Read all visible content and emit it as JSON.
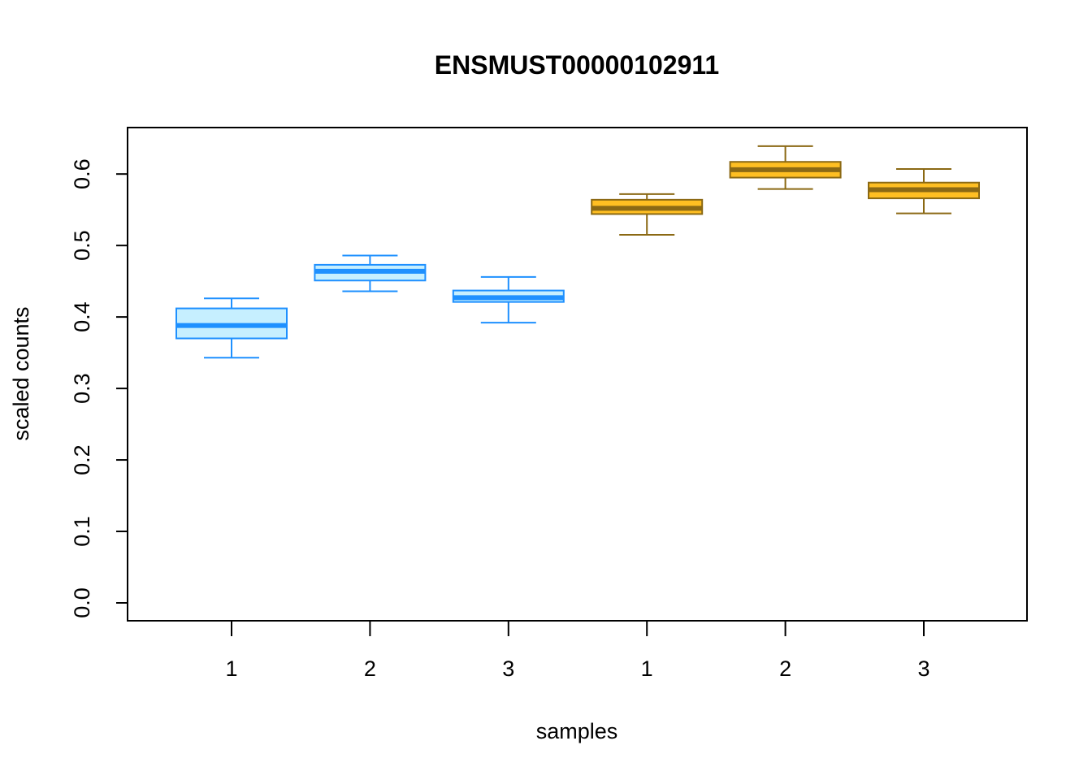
{
  "chart_data": {
    "type": "box",
    "title": "ENSMUST00000102911",
    "xlabel": "samples",
    "ylabel": "scaled counts",
    "ylim": [
      -0.025,
      0.665
    ],
    "yticks": [
      "0.0",
      "0.1",
      "0.2",
      "0.3",
      "0.4",
      "0.5",
      "0.6"
    ],
    "categories": [
      "1",
      "2",
      "3",
      "1",
      "2",
      "3"
    ],
    "groups": [
      {
        "fill": "#c6efff",
        "stroke": "#1e90ff",
        "median_color": "#1e90ff"
      },
      {
        "fill": "#ffbf22",
        "stroke": "#8b6914",
        "median_color": "#8b6914"
      }
    ],
    "boxes": [
      {
        "label": "1",
        "group": 0,
        "min": 0.343,
        "q1": 0.37,
        "median": 0.388,
        "q3": 0.412,
        "max": 0.426
      },
      {
        "label": "2",
        "group": 0,
        "min": 0.436,
        "q1": 0.451,
        "median": 0.464,
        "q3": 0.473,
        "max": 0.486
      },
      {
        "label": "3",
        "group": 0,
        "min": 0.392,
        "q1": 0.421,
        "median": 0.427,
        "q3": 0.437,
        "max": 0.456
      },
      {
        "label": "1",
        "group": 1,
        "min": 0.515,
        "q1": 0.544,
        "median": 0.552,
        "q3": 0.564,
        "max": 0.572
      },
      {
        "label": "2",
        "group": 1,
        "min": 0.579,
        "q1": 0.595,
        "median": 0.606,
        "q3": 0.617,
        "max": 0.639
      },
      {
        "label": "3",
        "group": 1,
        "min": 0.545,
        "q1": 0.566,
        "median": 0.578,
        "q3": 0.588,
        "max": 0.607
      }
    ]
  }
}
